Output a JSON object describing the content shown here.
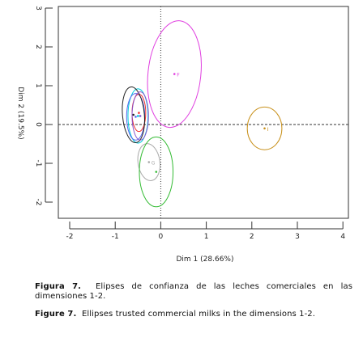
{
  "chart_data": {
    "type": "scatter",
    "title": "",
    "xlabel": "Dim 1 (28.66%)",
    "ylabel": "Dim 2 (19.5%)",
    "xlim": [
      -2.2,
      4.2
    ],
    "ylim": [
      -2.5,
      3.0
    ],
    "x_ticks": [
      "-2",
      "-1",
      "0",
      "1",
      "2",
      "3",
      "4"
    ],
    "y_ticks": [
      "-2",
      "-1",
      "0",
      "1",
      "2",
      "3"
    ],
    "reference_lines": {
      "x": 0,
      "y": 0
    },
    "ellipses": [
      {
        "label": "F",
        "cx": 0.3,
        "cy": 1.3,
        "rx": 0.58,
        "ry": 1.38,
        "angle": 6,
        "color": "#e040e0"
      },
      {
        "label": "I",
        "cx": 2.28,
        "cy": -0.1,
        "rx": 0.38,
        "ry": 0.55,
        "angle": 0,
        "color": "#c8901a"
      },
      {
        "label": "G",
        "cx": -0.26,
        "cy": -0.97,
        "rx": 0.24,
        "ry": 0.48,
        "angle": -8,
        "color": "#aaaaaa"
      },
      {
        "label": "",
        "cx": -0.1,
        "cy": -1.22,
        "rx": 0.37,
        "ry": 0.9,
        "angle": 0,
        "color": "#33bb33"
      },
      {
        "label": "",
        "cx": -0.5,
        "cy": 0.22,
        "rx": 0.22,
        "ry": 0.7,
        "angle": 0,
        "color": "#00ccdd"
      },
      {
        "label": "",
        "cx": -0.55,
        "cy": 0.2,
        "rx": 0.2,
        "ry": 0.6,
        "angle": 0,
        "color": "#5566ee"
      },
      {
        "label": "",
        "cx": -0.48,
        "cy": 0.3,
        "rx": 0.15,
        "ry": 0.48,
        "angle": 0,
        "color": "#ee3333"
      },
      {
        "label": "",
        "cx": -0.6,
        "cy": 0.25,
        "rx": 0.24,
        "ry": 0.72,
        "angle": -5,
        "color": "#222222"
      },
      {
        "label": "",
        "cx": -0.45,
        "cy": 0.22,
        "rx": 0.18,
        "ry": 0.62,
        "angle": 0,
        "color": "#8855cc"
      }
    ],
    "grid": false,
    "legend": "none"
  },
  "caption": {
    "es_label": "Figura 7.",
    "es_text": "Elipses de confianza de las leches comerciales en las dimensiones 1-2.",
    "en_label": "Figure 7.",
    "en_text": "Ellipses trusted commercial milks in the dimensions 1-2."
  }
}
